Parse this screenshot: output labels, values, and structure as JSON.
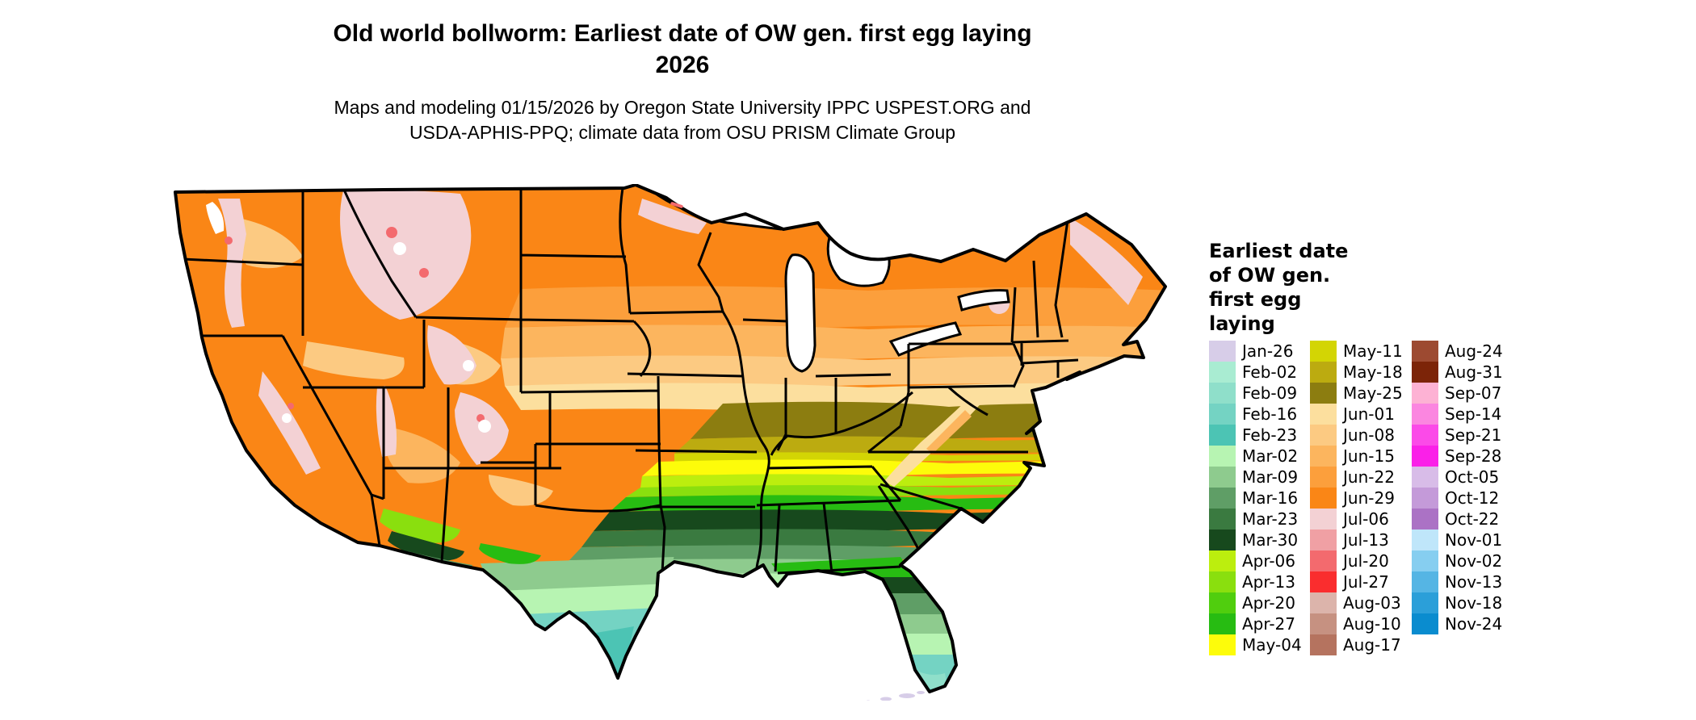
{
  "header": {
    "title_line1": "Old world bollworm: Earliest date of OW gen. first egg laying",
    "title_line2": "2026",
    "subtitle_line1": "Maps and modeling 01/15/2026 by Oregon State University IPPC USPEST.ORG and",
    "subtitle_line2": "USDA-APHIS-PPQ; climate data from OSU PRISM Climate Group"
  },
  "legend": {
    "title_lines": [
      "Earliest date",
      "of OW gen.",
      "first egg",
      "laying"
    ],
    "columns": [
      [
        {
          "label": "Jan-26",
          "color": "#d7cde8"
        },
        {
          "label": "Feb-02",
          "color": "#a9ecd2"
        },
        {
          "label": "Feb-09",
          "color": "#8fdfca"
        },
        {
          "label": "Feb-16",
          "color": "#74d3c3"
        },
        {
          "label": "Feb-23",
          "color": "#4cc4b4"
        },
        {
          "label": "Mar-02",
          "color": "#b7f4b2"
        },
        {
          "label": "Mar-09",
          "color": "#8ecb8e"
        },
        {
          "label": "Mar-16",
          "color": "#5f9e66"
        },
        {
          "label": "Mar-23",
          "color": "#3a7a40"
        },
        {
          "label": "Mar-30",
          "color": "#17491d"
        },
        {
          "label": "Apr-06",
          "color": "#bcee0e"
        },
        {
          "label": "Apr-13",
          "color": "#8adf0e"
        },
        {
          "label": "Apr-20",
          "color": "#50ce0e"
        },
        {
          "label": "Apr-27",
          "color": "#27bc12"
        },
        {
          "label": "May-04",
          "color": "#fdfc0a"
        }
      ],
      [
        {
          "label": "May-11",
          "color": "#d3d504"
        },
        {
          "label": "May-18",
          "color": "#bcab10"
        },
        {
          "label": "May-25",
          "color": "#8c7d10"
        },
        {
          "label": "Jun-01",
          "color": "#fcdf9e"
        },
        {
          "label": "Jun-08",
          "color": "#fcca82"
        },
        {
          "label": "Jun-15",
          "color": "#fcb55e"
        },
        {
          "label": "Jun-22",
          "color": "#fc9f3c"
        },
        {
          "label": "Jun-29",
          "color": "#fa8616"
        },
        {
          "label": "Jul-06",
          "color": "#f3d1d4"
        },
        {
          "label": "Jul-13",
          "color": "#f0a0a4"
        },
        {
          "label": "Jul-20",
          "color": "#f36a6e"
        },
        {
          "label": "Jul-27",
          "color": "#fa2d2e"
        },
        {
          "label": "Aug-03",
          "color": "#dcb4ab"
        },
        {
          "label": "Aug-10",
          "color": "#c69181"
        },
        {
          "label": "Aug-17",
          "color": "#b5735f"
        }
      ],
      [
        {
          "label": "Aug-24",
          "color": "#9d4a31"
        },
        {
          "label": "Aug-31",
          "color": "#7c2408"
        },
        {
          "label": "Sep-07",
          "color": "#fdb2d4"
        },
        {
          "label": "Sep-14",
          "color": "#fb86e0"
        },
        {
          "label": "Sep-21",
          "color": "#fb4ae8"
        },
        {
          "label": "Sep-28",
          "color": "#fa20e8"
        },
        {
          "label": "Oct-05",
          "color": "#d8bce8"
        },
        {
          "label": "Oct-12",
          "color": "#c49ad9"
        },
        {
          "label": "Oct-22",
          "color": "#ab72c5"
        },
        {
          "label": "Nov-01",
          "color": "#bfe6fa"
        },
        {
          "label": "Nov-02",
          "color": "#86cef0"
        },
        {
          "label": "Nov-13",
          "color": "#55b5e4"
        },
        {
          "label": "Nov-18",
          "color": "#2b9fd9"
        },
        {
          "label": "Nov-24",
          "color": "#0a8ccf"
        }
      ]
    ]
  },
  "chart_data": {
    "type": "heatmap",
    "title": "Old world bollworm: Earliest date of OW gen. first egg laying 2026",
    "subtitle": "Maps and modeling 01/15/2026 by Oregon State University IPPC USPEST.ORG and USDA-APHIS-PPQ; climate data from OSU PRISM Climate Group",
    "legend_title": "Earliest date of OW gen. first egg laying",
    "region": "Continental United States",
    "value_scale_weekly_dates": [
      "Jan-26",
      "Feb-02",
      "Feb-09",
      "Feb-16",
      "Feb-23",
      "Mar-02",
      "Mar-09",
      "Mar-16",
      "Mar-23",
      "Mar-30",
      "Apr-06",
      "Apr-13",
      "Apr-20",
      "Apr-27",
      "May-04",
      "May-11",
      "May-18",
      "May-25",
      "Jun-01",
      "Jun-08",
      "Jun-15",
      "Jun-22",
      "Jun-29",
      "Jul-06",
      "Jul-13",
      "Jul-20",
      "Jul-27",
      "Aug-03",
      "Aug-10",
      "Aug-17",
      "Aug-24",
      "Aug-31",
      "Sep-07",
      "Sep-14",
      "Sep-21",
      "Sep-28",
      "Oct-05",
      "Oct-12",
      "Oct-22",
      "Nov-01",
      "Nov-02",
      "Nov-13",
      "Nov-18",
      "Nov-24"
    ],
    "legend_position": "right",
    "spatial_pattern": [
      {
        "area": "Northern tier (WA OR ID MT ND MN WI MI NY New England)",
        "value": "Jun-22 to Jun-29"
      },
      {
        "area": "Northern mountain ranges (Cascades, Sierra Nevada, Rockies)",
        "value": "Jul-06 to Jul-27"
      },
      {
        "area": "Central plains and Ohio Valley (NE IA IL IN OH PA)",
        "value": "Jun-01 to Jun-08"
      },
      {
        "area": "MO KY WV VA belt",
        "value": "May-18 to May-25"
      },
      {
        "area": "KS OK TN NC belt",
        "value": "May-04 to May-11"
      },
      {
        "area": "TX AR northern Gulf states SC",
        "value": "Apr-06 to Apr-27"
      },
      {
        "area": "Central Gulf belt",
        "value": "Mar-23 to Mar-30"
      },
      {
        "area": "Gulf coast and central Florida",
        "value": "Mar-02 to Mar-16"
      },
      {
        "area": "South Texas and South Florida",
        "value": "Feb-09 to Feb-23"
      },
      {
        "area": "Florida Keys",
        "value": "Jan-26"
      },
      {
        "area": "California Central Valley",
        "value": "Apr-13 to May-04"
      },
      {
        "area": "Southern Arizona low desert",
        "value": "Mar-23 to Apr-13"
      }
    ]
  }
}
